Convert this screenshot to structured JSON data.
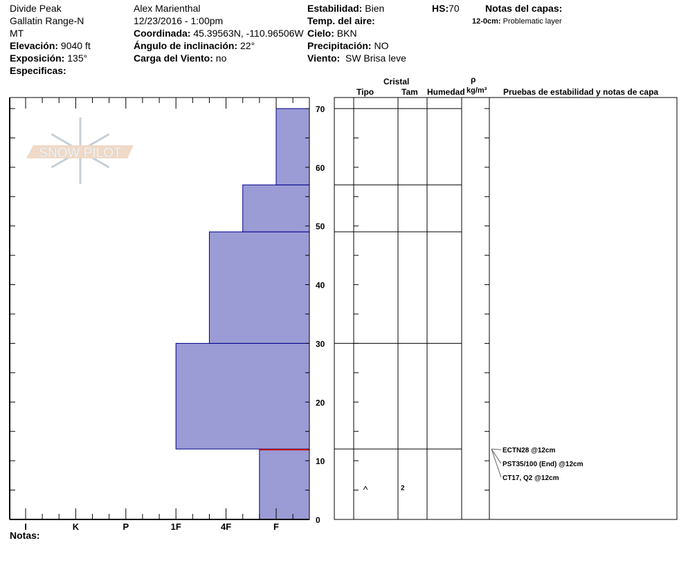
{
  "header": {
    "location": "Divide Peak",
    "range": "Gallatin Range-N",
    "state": "MT",
    "elevation_label": "Elevación:",
    "elevation": "9040 ft",
    "aspect_label": "Exposición:",
    "aspect": "135°",
    "specifics_label": "Especificas:",
    "observer": "Alex Marienthal",
    "datetime": "12/23/2016 - 1:00pm",
    "coord_label": "Coordinada:",
    "coord": "45.39563N, -110.96506W",
    "slope_label": "Ángulo de inclinación:",
    "slope": "22°",
    "windload_label": "Carga del Viento:",
    "windload": "no",
    "stability_label": "Estabilidad:",
    "stability": "Bien",
    "airtemp_label": "Temp. del aire:",
    "airtemp": "",
    "sky_label": "Cielo:",
    "sky": "BKN",
    "precip_label": "Precipitación:",
    "precip": "NO",
    "wind_label": "Viento:",
    "wind": "SW Brisa leve",
    "hs_label": "HS:",
    "hs": "70",
    "layer_notes_label": "Notas del capas:",
    "layer_notes": [
      {
        "range": "12-0cm:",
        "text": "Problematic layer"
      }
    ],
    "notes_label": "Notas:"
  },
  "table_headers": {
    "crystal": "Cristal",
    "type": "Tipo",
    "size": "Tam",
    "moisture": "Humedad",
    "rho": "ρ",
    "density": "kg/m³",
    "tests": "Pruebas de estabilidad y notas de capa"
  },
  "logo_text": "SNOW PILOT",
  "chart_data": {
    "type": "bar",
    "xlabel": "",
    "ylabel": "",
    "x_tick_labels": [
      "I",
      "K",
      "P",
      "1F",
      "4F",
      "F"
    ],
    "y_ticks": [
      0,
      10,
      20,
      30,
      40,
      50,
      60,
      70
    ],
    "ylim": [
      0,
      72
    ],
    "layers": [
      {
        "bottom": 0,
        "top": 12,
        "hardness": "F+"
      },
      {
        "bottom": 12,
        "top": 30,
        "hardness": "1F"
      },
      {
        "bottom": 30,
        "top": 49,
        "hardness": "4F+"
      },
      {
        "bottom": 49,
        "top": 57,
        "hardness": "4F-"
      },
      {
        "bottom": 57,
        "top": 70,
        "hardness": "F"
      }
    ],
    "problem_layer_depth": 12,
    "crystals": [
      {
        "depth": 5.5,
        "type": "^",
        "size": "2"
      }
    ],
    "tests": [
      "ECTN28 @12cm",
      "PST35/100 (End) @12cm",
      "CT17, Q2 @12cm"
    ],
    "colors": {
      "fill": "#9b9bd5",
      "edge": "#00008b",
      "problem": "#c00000"
    }
  }
}
